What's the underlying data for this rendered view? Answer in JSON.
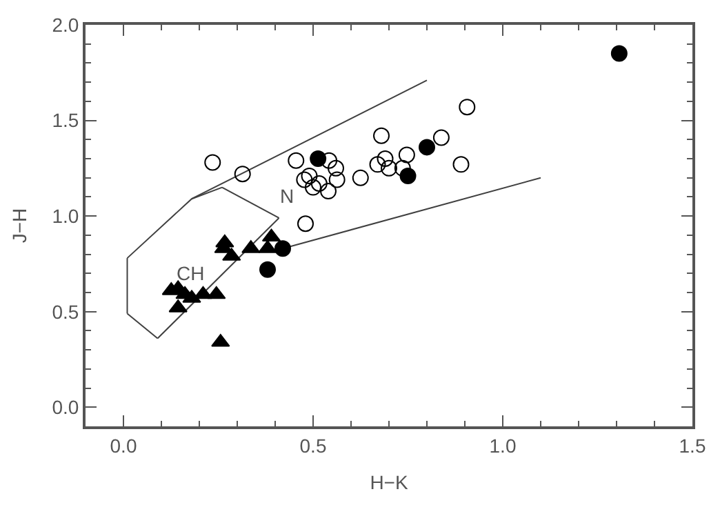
{
  "chart_data": {
    "type": "scatter",
    "xlabel": "H−K",
    "ylabel": "J−H",
    "xlim": [
      -0.1,
      1.5
    ],
    "ylim": [
      -0.1,
      2.0
    ],
    "xticks": [
      {
        "value": 0,
        "label": "0.0"
      },
      0.5,
      {
        "value": 1,
        "label": "1.0"
      },
      1.5
    ],
    "yticks": [
      {
        "value": 0,
        "label": "0.0"
      },
      0.5,
      {
        "value": 1,
        "label": "1.0"
      },
      1.5,
      {
        "value": 2,
        "label": "2.0"
      }
    ],
    "series": [
      {
        "type": "line",
        "marker": "none",
        "color": "#404040",
        "x": [
          0.01,
          0.01
        ],
        "values": [
          0.49,
          0.78
        ]
      },
      {
        "type": "line",
        "marker": "none",
        "color": "#404040",
        "x": [
          0.01,
          0.09
        ],
        "values": [
          0.49,
          0.36
        ]
      },
      {
        "type": "line",
        "marker": "none",
        "color": "#404040",
        "x": [
          0.09,
          0.41
        ],
        "values": [
          0.36,
          0.99
        ]
      },
      {
        "type": "line",
        "marker": "none",
        "color": "#404040",
        "x": [
          0.26,
          0.41
        ],
        "values": [
          1.15,
          0.99
        ]
      },
      {
        "type": "line",
        "marker": "none",
        "color": "#404040",
        "x": [
          0.18,
          0.26
        ],
        "values": [
          1.09,
          1.15
        ]
      },
      {
        "type": "line",
        "marker": "none",
        "color": "#404040",
        "x": [
          0.01,
          0.18,
          0.8
        ],
        "values": [
          0.78,
          1.09,
          1.71
        ]
      },
      {
        "type": "line",
        "marker": "none",
        "color": "#404040",
        "x": [
          0.42,
          1.1
        ],
        "values": [
          0.83,
          1.2
        ]
      },
      {
        "marker": "circle-open",
        "color": "#000000",
        "x": [
          0.235,
          0.314,
          0.455,
          0.48,
          0.49,
          0.477,
          0.5,
          0.516,
          0.542,
          0.56,
          0.563,
          0.54,
          0.625,
          0.906,
          0.68,
          0.838,
          0.69,
          0.67,
          0.7,
          0.747,
          0.736,
          0.89
        ],
        "values": [
          1.28,
          1.22,
          1.29,
          0.96,
          1.21,
          1.19,
          1.15,
          1.17,
          1.29,
          1.25,
          1.19,
          1.13,
          1.2,
          1.57,
          1.42,
          1.41,
          1.3,
          1.27,
          1.25,
          1.32,
          1.25,
          1.27
        ]
      },
      {
        "marker": "circle",
        "color": "#000000",
        "x": [
          0.513,
          0.42,
          0.38,
          1.307,
          0.8,
          0.75
        ],
        "values": [
          1.3,
          0.83,
          0.72,
          1.85,
          1.36,
          1.21
        ]
      },
      {
        "marker": "triangle",
        "color": "#000000",
        "x": [
          0.267,
          0.264,
          0.285,
          0.336,
          0.39,
          0.38,
          0.126,
          0.144,
          0.162,
          0.18,
          0.144,
          0.21,
          0.245,
          0.256
        ],
        "values": [
          0.86,
          0.83,
          0.79,
          0.83,
          0.89,
          0.83,
          0.61,
          0.62,
          0.59,
          0.57,
          0.52,
          0.59,
          0.59,
          0.34
        ]
      }
    ],
    "annotations": [
      "CH",
      "N"
    ]
  }
}
